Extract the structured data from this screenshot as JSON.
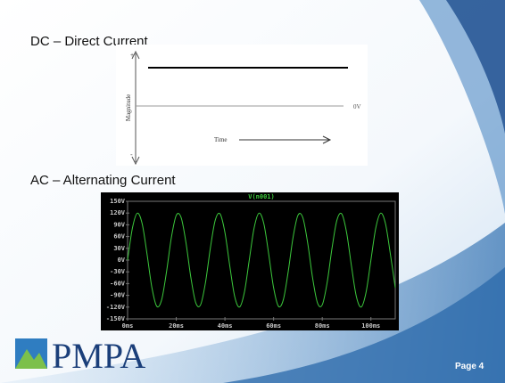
{
  "slide": {
    "dc_heading": "DC – Direct Current",
    "ac_heading": "AC – Alternating Current",
    "logo": "PMPA",
    "page": "Page 4"
  },
  "dc_diagram": {
    "plus": "+",
    "minus": "-",
    "y_label": "Magnitude",
    "zero_label": "0V",
    "x_label": "Time"
  },
  "chart_data": {
    "type": "line",
    "title": "V(n001)",
    "x": [
      0,
      2,
      4,
      6,
      8,
      10,
      12,
      14,
      16,
      18,
      20,
      22,
      24,
      26,
      28,
      30,
      32,
      34,
      36,
      38,
      40,
      42,
      44,
      46,
      48,
      50,
      52,
      54,
      56,
      58,
      60,
      62,
      64,
      66,
      68,
      70,
      72,
      74,
      76,
      78,
      80,
      82,
      84,
      86,
      88,
      90,
      92,
      94,
      96,
      98,
      100,
      102,
      104,
      106,
      108,
      110
    ],
    "values": [
      0,
      82.1,
      119.8,
      92.5,
      15.0,
      -70.5,
      -117.9,
      -101.3,
      -29.8,
      57.8,
      114.1,
      108.6,
      44.2,
      -44.2,
      -108.6,
      -114.1,
      -57.8,
      29.8,
      101.3,
      117.9,
      70.5,
      -15.0,
      -92.5,
      -119.8,
      -82.1,
      0,
      82.1,
      119.8,
      92.5,
      15.0,
      -70.5,
      -117.9,
      -101.3,
      -29.8,
      57.8,
      114.1,
      108.6,
      44.2,
      -44.2,
      -108.6,
      -114.1,
      -57.8,
      29.8,
      101.3,
      117.9,
      70.5,
      -15.0,
      -92.5,
      -119.8,
      -82.1,
      0,
      82.1,
      119.8,
      92.5,
      15.0,
      -70.5
    ],
    "color": "#3cc83c",
    "xlim": [
      0,
      110
    ],
    "ylim": [
      -150,
      150
    ],
    "xticks": [
      {
        "value": 0,
        "label": "0ms"
      },
      {
        "value": 20,
        "label": "20ms"
      },
      {
        "value": 40,
        "label": "40ms"
      },
      {
        "value": 60,
        "label": "60ms"
      },
      {
        "value": 80,
        "label": "80ms"
      },
      {
        "value": 100,
        "label": "100ms"
      }
    ],
    "yticks": [
      {
        "value": 150,
        "label": "150V"
      },
      {
        "value": 120,
        "label": "120V"
      },
      {
        "value": 90,
        "label": "90V"
      },
      {
        "value": 60,
        "label": "60V"
      },
      {
        "value": 30,
        "label": "30V"
      },
      {
        "value": 0,
        "label": "0V"
      },
      {
        "value": -30,
        "label": "-30V"
      },
      {
        "value": -60,
        "label": "-60V"
      },
      {
        "value": -90,
        "label": "-90V"
      },
      {
        "value": -120,
        "label": "-120V"
      },
      {
        "value": -150,
        "label": "-150V"
      }
    ],
    "grid": false
  }
}
